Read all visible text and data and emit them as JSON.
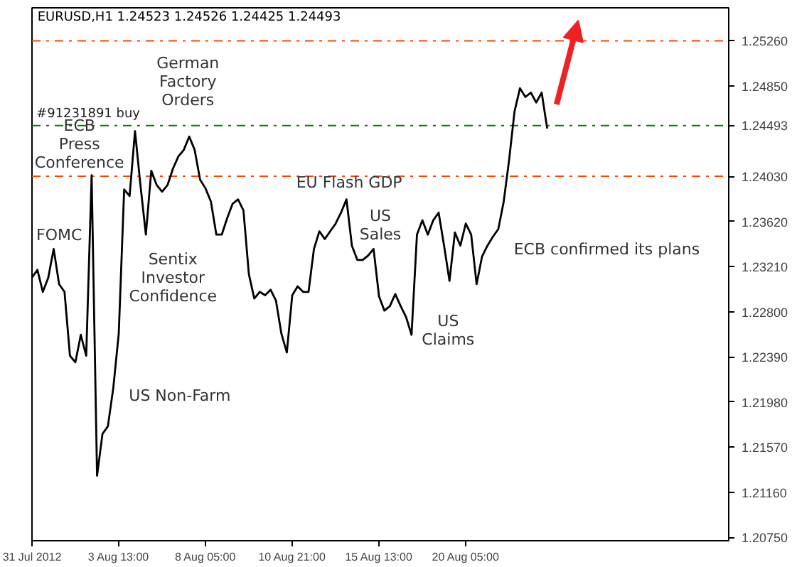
{
  "chart_data": {
    "type": "line",
    "title": "EURUSD,H1  1.24523 1.24526 1.24425 1.24493",
    "categories": [
      "31 Jul 2012",
      null,
      null,
      null,
      null,
      null,
      null,
      null,
      null,
      null,
      null,
      null,
      null,
      null,
      null,
      null,
      "3 Aug 13:00",
      null,
      null,
      null,
      null,
      null,
      null,
      null,
      null,
      null,
      null,
      null,
      null,
      null,
      null,
      null,
      "8 Aug 05:00",
      null,
      null,
      null,
      null,
      null,
      null,
      null,
      null,
      null,
      null,
      null,
      null,
      null,
      null,
      null,
      "10 Aug 21:00",
      null,
      null,
      null,
      null,
      null,
      null,
      null,
      null,
      null,
      null,
      null,
      null,
      null,
      null,
      null,
      "15 Aug 13:00",
      null,
      null,
      null,
      null,
      null,
      null,
      null,
      null,
      null,
      null,
      null,
      null,
      null,
      null,
      null,
      "20 Aug 05:00",
      null,
      null,
      null,
      null,
      null,
      null,
      null,
      null,
      null,
      null,
      null,
      null,
      null,
      null,
      null,
      null,
      null,
      null,
      null,
      null,
      null,
      null,
      null,
      null,
      null,
      null,
      null,
      null,
      null,
      null,
      null,
      null,
      null,
      null,
      null,
      null,
      null,
      null,
      null,
      null,
      null,
      null,
      null,
      null,
      null,
      null,
      null,
      null
    ],
    "series": [
      {
        "color": "#000000",
        "values": [
          1.2311,
          1.2318,
          1.2298,
          1.2311,
          1.2337,
          1.2305,
          1.2298,
          1.224,
          1.2234,
          1.2259,
          1.224,
          1.2404,
          1.2131,
          1.2169,
          1.2176,
          1.2211,
          1.226,
          1.2391,
          1.2385,
          1.2444,
          1.2395,
          1.235,
          1.2408,
          1.2395,
          1.2389,
          1.2395,
          1.241,
          1.2421,
          1.2427,
          1.2439,
          1.2427,
          1.24,
          1.2392,
          1.238,
          1.235,
          1.235,
          1.2365,
          1.2378,
          1.2382,
          1.2372,
          1.2314,
          1.2292,
          1.2298,
          1.2295,
          1.23,
          1.229,
          1.226,
          1.2243,
          1.2295,
          1.2303,
          1.2298,
          1.2298,
          1.2337,
          1.2353,
          1.2346,
          1.2353,
          1.236,
          1.237,
          1.2382,
          1.234,
          1.2327,
          1.2327,
          1.2331,
          1.2337,
          1.2294,
          1.2281,
          1.2285,
          1.2296,
          1.2285,
          1.2275,
          1.2259,
          1.235,
          1.2363,
          1.235,
          1.2363,
          1.237,
          1.234,
          1.2308,
          1.2352,
          1.234,
          1.236,
          1.235,
          1.2305,
          1.233,
          1.234,
          1.2348,
          1.2355,
          1.238,
          1.2418,
          1.2462,
          1.2483,
          1.2475,
          1.2479,
          1.247,
          1.2479,
          1.2447,
          null,
          null,
          null,
          null,
          null,
          null,
          null,
          null,
          null,
          null,
          null,
          null,
          null,
          null,
          null,
          null,
          null,
          null,
          null,
          null,
          null,
          null,
          null,
          null,
          null,
          null,
          null,
          null,
          null,
          null,
          null,
          null,
          null
        ]
      }
    ],
    "ylim": [
      1.2072,
      1.2556
    ],
    "yticks": [
      {
        "value": 1.2075,
        "label": "1.20750"
      },
      {
        "value": 1.2116,
        "label": "1.21160"
      },
      {
        "value": 1.2157,
        "label": "1.21570"
      },
      {
        "value": 1.2198,
        "label": "1.21980"
      },
      {
        "value": 1.2239,
        "label": "1.22390"
      },
      {
        "value": 1.228,
        "label": "1.22800"
      },
      {
        "value": 1.2321,
        "label": "1.23210"
      },
      {
        "value": 1.2362,
        "label": "1.23620"
      },
      {
        "value": 1.2403,
        "label": "1.24030"
      },
      {
        "value": 1.24493,
        "label": "1.24493"
      },
      {
        "value": 1.2485,
        "label": "1.24850"
      },
      {
        "value": 1.2526,
        "label": "1.25260"
      }
    ],
    "ref_lines": [
      {
        "axis": "y",
        "value": 1.2526,
        "label": null,
        "color": "#ff4500",
        "line_style": "dashdot"
      },
      {
        "axis": "y",
        "value": 1.2403,
        "label": null,
        "color": "#ff4500",
        "line_style": "dashdot"
      },
      {
        "axis": "y",
        "value": 1.2449,
        "label": "#91231891 buy",
        "color": "#008000",
        "line_style": "dashdot"
      }
    ],
    "annotations": [
      "FOMC",
      "ECB\nPress\nConference",
      "German\nFactory\nOrders",
      "Sentix\nInvestor\nConfidence",
      "US Non-Farm",
      "EU Flash GDP",
      "US\nSales",
      "US\nClaims",
      "ECB confirmed its plans"
    ],
    "grid": false,
    "line_style": "solid",
    "marker": "none"
  }
}
